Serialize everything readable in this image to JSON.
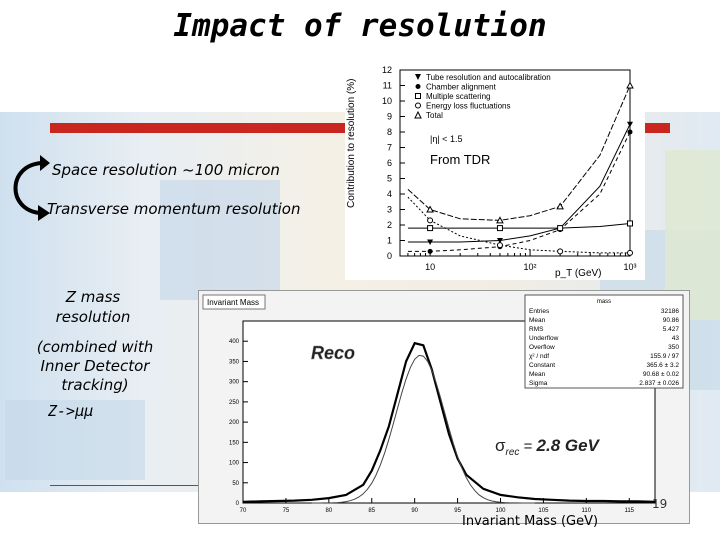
{
  "slide": {
    "title": "Impact of resolution",
    "space_resolution": "Space resolution ~100 micron",
    "transverse_resolution": "Transverse momentum resolution",
    "z_mass_line1": "Z mass",
    "z_mass_line2": "resolution",
    "combined_line1": "(combined with",
    "combined_line2": "Inner Detector",
    "combined_line3": "tracking)",
    "z_mumu": "Z->μμ",
    "page_number": "19",
    "accent_red": "#c9261f"
  },
  "tdr_plot": {
    "annotation": "From TDR",
    "ylabel": "Contribution to resolution (%)",
    "xlabel": "p_T (GeV)",
    "cut_text": "|η| < 1.5",
    "legend": [
      {
        "label": "Tube resolution and autocalibration",
        "marker": "star"
      },
      {
        "label": "Chamber alignment",
        "marker": "filled-circle"
      },
      {
        "label": "Multiple scattering",
        "marker": "open-square"
      },
      {
        "label": "Energy loss fluctuations",
        "marker": "open-circle"
      },
      {
        "label": "Total",
        "marker": "open-triangle"
      }
    ],
    "y_ticks": [
      "0",
      "1",
      "2",
      "3",
      "4",
      "5",
      "6",
      "7",
      "8",
      "9",
      "10",
      "11",
      "12"
    ],
    "x_ticks": [
      "10",
      "10²",
      "10³"
    ]
  },
  "mass_plot": {
    "title": "Invariant Mass",
    "reco_label": "Reco",
    "sigma_label": "σrec = 2.8 GeV",
    "xlabel": "Invariant Mass (GeV)",
    "y_ticks": [
      "0",
      "50",
      "100",
      "150",
      "200",
      "250",
      "300",
      "350",
      "400"
    ],
    "x_ticks": [
      "70",
      "75",
      "80",
      "85",
      "90",
      "95",
      "100",
      "105",
      "110",
      "115"
    ],
    "stats_title": "mass",
    "stats": [
      {
        "k": "Entries",
        "v": "32186"
      },
      {
        "k": "Mean",
        "v": "90.86"
      },
      {
        "k": "RMS",
        "v": "5.427"
      },
      {
        "k": "Underflow",
        "v": "43"
      },
      {
        "k": "Overflow",
        "v": "350"
      },
      {
        "k": "χ² / ndf",
        "v": "155.9 / 97"
      },
      {
        "k": "Constant",
        "v": "365.6 ± 3.2"
      },
      {
        "k": "Mean",
        "v": "90.68 ± 0.02"
      },
      {
        "k": "Sigma",
        "v": "2.837 ± 0.026"
      }
    ]
  },
  "chart_data": [
    {
      "type": "line",
      "xlabel": "p_T (GeV)",
      "ylabel": "Contribution to resolution (%)",
      "xscale": "log",
      "xlim": [
        5,
        1000
      ],
      "ylim": [
        0,
        12
      ],
      "x": [
        6,
        10,
        20,
        50,
        100,
        200,
        500,
        1000
      ],
      "series": [
        {
          "name": "Tube resolution and autocalibration",
          "values": [
            0.9,
            0.9,
            0.9,
            1.0,
            1.3,
            1.8,
            4.5,
            8.5
          ]
        },
        {
          "name": "Chamber alignment",
          "values": [
            0.3,
            0.3,
            0.4,
            0.6,
            1.0,
            1.7,
            4.0,
            8.0
          ]
        },
        {
          "name": "Multiple scattering",
          "values": [
            1.8,
            1.8,
            1.8,
            1.8,
            1.8,
            1.8,
            1.9,
            2.1
          ]
        },
        {
          "name": "Energy loss fluctuations",
          "values": [
            3.8,
            2.3,
            1.3,
            0.7,
            0.4,
            0.3,
            0.2,
            0.2
          ]
        },
        {
          "name": "Total",
          "values": [
            4.3,
            3.0,
            2.4,
            2.3,
            2.6,
            3.2,
            6.5,
            11.0
          ]
        }
      ]
    },
    {
      "type": "line",
      "title": "Invariant Mass",
      "xlabel": "Invariant Mass (GeV)",
      "xlim": [
        70,
        118
      ],
      "ylim": [
        0,
        450
      ],
      "x": [
        70,
        72,
        74,
        76,
        78,
        80,
        82,
        84,
        85,
        86,
        87,
        88,
        89,
        90,
        91,
        92,
        93,
        94,
        95,
        96,
        98,
        100,
        102,
        104,
        106,
        108,
        110,
        112,
        114,
        116,
        118
      ],
      "series": [
        {
          "name": "mass",
          "values": [
            3,
            4,
            5,
            6,
            8,
            12,
            20,
            45,
            80,
            130,
            190,
            270,
            350,
            395,
            390,
            330,
            250,
            170,
            110,
            70,
            35,
            20,
            14,
            10,
            8,
            6,
            5,
            5,
            4,
            4,
            3
          ]
        }
      ]
    }
  ]
}
